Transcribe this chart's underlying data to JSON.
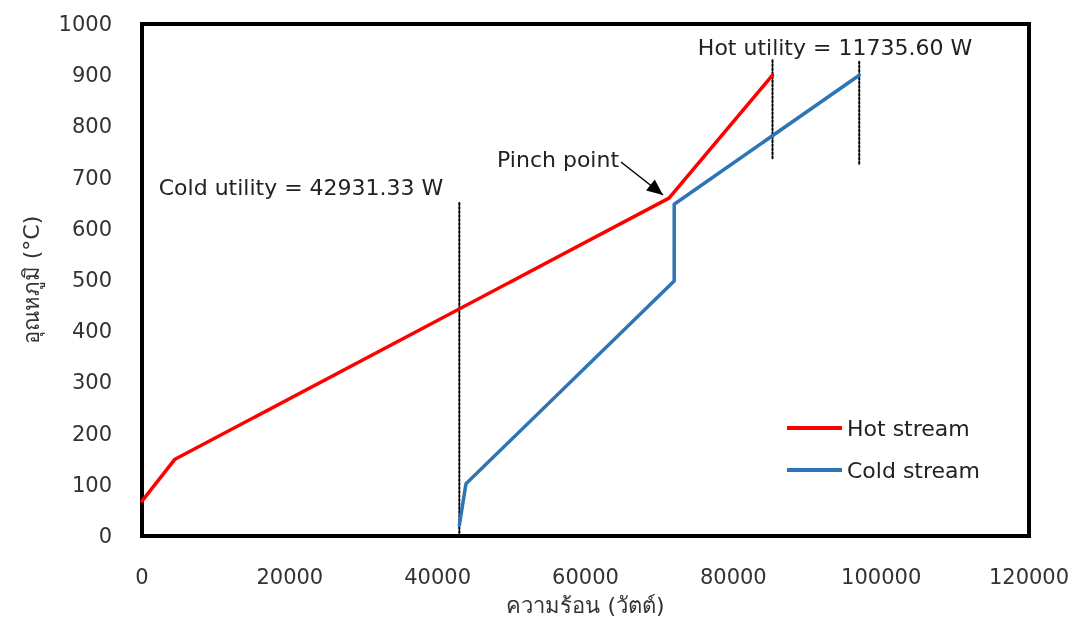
{
  "chart_data": {
    "type": "line",
    "xlabel": "ความร้อน (วัตต์)",
    "ylabel": "อุณหภูมิ (°C)",
    "xlim": [
      0,
      120000
    ],
    "xticks": [
      0,
      20000,
      40000,
      60000,
      80000,
      100000,
      120000
    ],
    "ylim": [
      0,
      1000
    ],
    "yticks": [
      0,
      100,
      200,
      300,
      400,
      500,
      600,
      700,
      800,
      900,
      1000
    ],
    "grid": false,
    "legend": "bottom right",
    "marker": "none",
    "line_style": "solid",
    "series": [
      {
        "name": "Hot stream",
        "color": "#ff0000",
        "x": [
          0,
          4460,
          71300,
          85300
        ],
        "values": [
          68,
          150,
          660,
          900
        ]
      },
      {
        "name": "Cold stream",
        "color": "#2e75b6",
        "x": [
          42931,
          43830,
          72000,
          72000,
          97035
        ],
        "values": [
          21,
          102,
          498,
          648,
          900
        ]
      },
      {
        "color": "#000000",
        "line_style": "dotted",
        "x": [
          42931,
          42931
        ],
        "values": [
          6,
          652
        ]
      },
      {
        "color": "#000000",
        "line_style": "dotted",
        "x": [
          85300,
          85300
        ],
        "values": [
          738,
          930
        ]
      },
      {
        "color": "#000000",
        "line_style": "dotted",
        "x": [
          97035,
          97035
        ],
        "values": [
          727,
          930
        ]
      }
    ],
    "annotations": [
      {
        "text": "Cold utility = 42931.33 W",
        "x": 42931,
        "y": 652
      },
      "Hot utility = 11735.60 W",
      {
        "text": "Pinch point",
        "x": 71300,
        "y": 660
      }
    ]
  }
}
